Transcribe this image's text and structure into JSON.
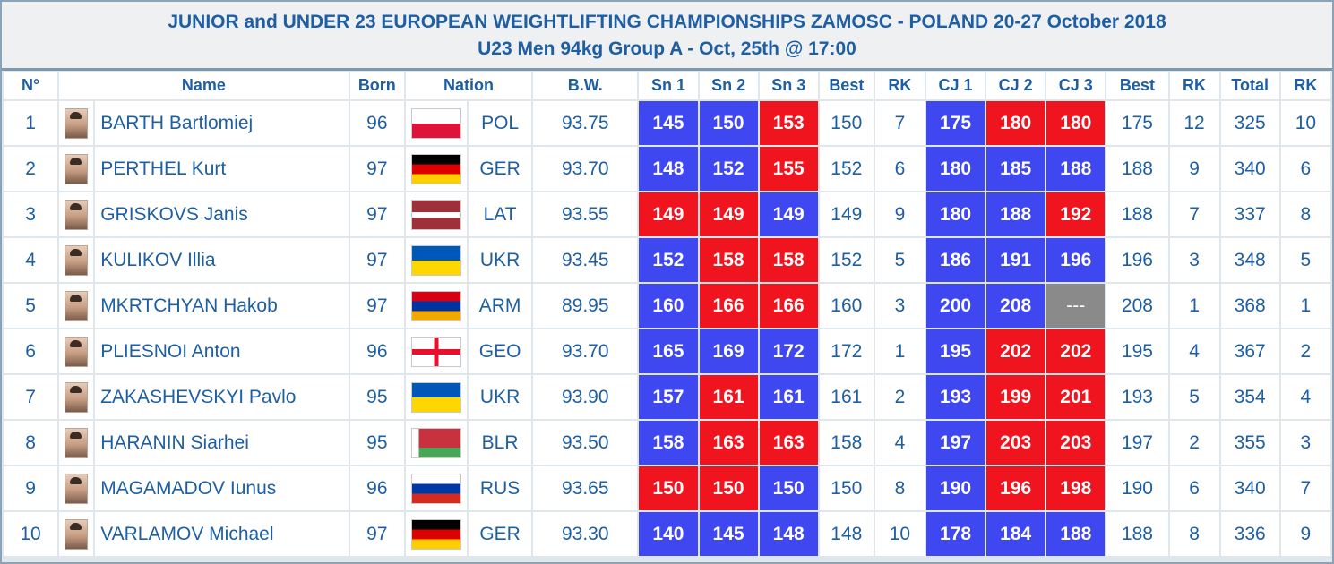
{
  "header": {
    "title": "JUNIOR and UNDER 23 EUROPEAN WEIGHTLIFTING CHAMPIONSHIPS ZAMOSC - POLAND 20-27 October 2018",
    "subtitle": "U23 Men 94kg Group A - Oct, 25th @ 17:00"
  },
  "colors": {
    "good_lift": "#3f47f0",
    "no_lift": "#f0141e",
    "not_attempted": "#8a8a8a",
    "text": "#1e5fa3"
  },
  "columns": [
    "N°",
    "Name",
    "Born",
    "Nation",
    "B.W.",
    "Sn 1",
    "Sn 2",
    "Sn 3",
    "Best",
    "RK",
    "CJ 1",
    "CJ 2",
    "CJ 3",
    "Best",
    "RK",
    "Total",
    "RK"
  ],
  "rows": [
    {
      "no": "1",
      "name": "BARTH Bartlomiej",
      "born": "96",
      "flag": "flag-pol",
      "nation": "POL",
      "bw": "93.75",
      "sn": [
        {
          "v": "145",
          "r": "ok"
        },
        {
          "v": "150",
          "r": "ok"
        },
        {
          "v": "153",
          "r": "fail"
        }
      ],
      "sn_best": "150",
      "sn_rk": "7",
      "cj": [
        {
          "v": "175",
          "r": "ok"
        },
        {
          "v": "180",
          "r": "fail"
        },
        {
          "v": "180",
          "r": "fail"
        }
      ],
      "cj_best": "175",
      "cj_rk": "12",
      "total": "325",
      "total_rk": "10"
    },
    {
      "no": "2",
      "name": "PERTHEL Kurt",
      "born": "97",
      "flag": "flag-ger",
      "nation": "GER",
      "bw": "93.70",
      "sn": [
        {
          "v": "148",
          "r": "ok"
        },
        {
          "v": "152",
          "r": "ok"
        },
        {
          "v": "155",
          "r": "fail"
        }
      ],
      "sn_best": "152",
      "sn_rk": "6",
      "cj": [
        {
          "v": "180",
          "r": "ok"
        },
        {
          "v": "185",
          "r": "ok"
        },
        {
          "v": "188",
          "r": "ok"
        }
      ],
      "cj_best": "188",
      "cj_rk": "9",
      "total": "340",
      "total_rk": "6"
    },
    {
      "no": "3",
      "name": "GRISKOVS Janis",
      "born": "97",
      "flag": "flag-lat",
      "nation": "LAT",
      "bw": "93.55",
      "sn": [
        {
          "v": "149",
          "r": "fail"
        },
        {
          "v": "149",
          "r": "fail"
        },
        {
          "v": "149",
          "r": "ok"
        }
      ],
      "sn_best": "149",
      "sn_rk": "9",
      "cj": [
        {
          "v": "180",
          "r": "ok"
        },
        {
          "v": "188",
          "r": "ok"
        },
        {
          "v": "192",
          "r": "fail"
        }
      ],
      "cj_best": "188",
      "cj_rk": "7",
      "total": "337",
      "total_rk": "8"
    },
    {
      "no": "4",
      "name": "KULIKOV Illia",
      "born": "97",
      "flag": "flag-ukr",
      "nation": "UKR",
      "bw": "93.45",
      "sn": [
        {
          "v": "152",
          "r": "ok"
        },
        {
          "v": "158",
          "r": "fail"
        },
        {
          "v": "158",
          "r": "fail"
        }
      ],
      "sn_best": "152",
      "sn_rk": "5",
      "cj": [
        {
          "v": "186",
          "r": "ok"
        },
        {
          "v": "191",
          "r": "ok"
        },
        {
          "v": "196",
          "r": "ok"
        }
      ],
      "cj_best": "196",
      "cj_rk": "3",
      "total": "348",
      "total_rk": "5"
    },
    {
      "no": "5",
      "name": "MKRTCHYAN Hakob",
      "born": "97",
      "flag": "flag-arm",
      "nation": "ARM",
      "bw": "89.95",
      "sn": [
        {
          "v": "160",
          "r": "ok"
        },
        {
          "v": "166",
          "r": "fail"
        },
        {
          "v": "166",
          "r": "fail"
        }
      ],
      "sn_best": "160",
      "sn_rk": "3",
      "cj": [
        {
          "v": "200",
          "r": "ok"
        },
        {
          "v": "208",
          "r": "ok"
        },
        {
          "v": "---",
          "r": "none"
        }
      ],
      "cj_best": "208",
      "cj_rk": "1",
      "total": "368",
      "total_rk": "1"
    },
    {
      "no": "6",
      "name": "PLIESNOI Anton",
      "born": "96",
      "flag": "flag-geo",
      "nation": "GEO",
      "bw": "93.70",
      "sn": [
        {
          "v": "165",
          "r": "ok"
        },
        {
          "v": "169",
          "r": "ok"
        },
        {
          "v": "172",
          "r": "ok"
        }
      ],
      "sn_best": "172",
      "sn_rk": "1",
      "cj": [
        {
          "v": "195",
          "r": "ok"
        },
        {
          "v": "202",
          "r": "fail"
        },
        {
          "v": "202",
          "r": "fail"
        }
      ],
      "cj_best": "195",
      "cj_rk": "4",
      "total": "367",
      "total_rk": "2"
    },
    {
      "no": "7",
      "name": "ZAKASHEVSKYI Pavlo",
      "born": "95",
      "flag": "flag-ukr",
      "nation": "UKR",
      "bw": "93.90",
      "sn": [
        {
          "v": "157",
          "r": "ok"
        },
        {
          "v": "161",
          "r": "fail"
        },
        {
          "v": "161",
          "r": "ok"
        }
      ],
      "sn_best": "161",
      "sn_rk": "2",
      "cj": [
        {
          "v": "193",
          "r": "ok"
        },
        {
          "v": "199",
          "r": "fail"
        },
        {
          "v": "201",
          "r": "fail"
        }
      ],
      "cj_best": "193",
      "cj_rk": "5",
      "total": "354",
      "total_rk": "4"
    },
    {
      "no": "8",
      "name": "HARANIN Siarhei",
      "born": "95",
      "flag": "flag-blr",
      "nation": "BLR",
      "bw": "93.50",
      "sn": [
        {
          "v": "158",
          "r": "ok"
        },
        {
          "v": "163",
          "r": "fail"
        },
        {
          "v": "163",
          "r": "fail"
        }
      ],
      "sn_best": "158",
      "sn_rk": "4",
      "cj": [
        {
          "v": "197",
          "r": "ok"
        },
        {
          "v": "203",
          "r": "fail"
        },
        {
          "v": "203",
          "r": "fail"
        }
      ],
      "cj_best": "197",
      "cj_rk": "2",
      "total": "355",
      "total_rk": "3"
    },
    {
      "no": "9",
      "name": "MAGAMADOV Iunus",
      "born": "96",
      "flag": "flag-rus",
      "nation": "RUS",
      "bw": "93.65",
      "sn": [
        {
          "v": "150",
          "r": "fail"
        },
        {
          "v": "150",
          "r": "fail"
        },
        {
          "v": "150",
          "r": "ok"
        }
      ],
      "sn_best": "150",
      "sn_rk": "8",
      "cj": [
        {
          "v": "190",
          "r": "ok"
        },
        {
          "v": "196",
          "r": "fail"
        },
        {
          "v": "198",
          "r": "fail"
        }
      ],
      "cj_best": "190",
      "cj_rk": "6",
      "total": "340",
      "total_rk": "7"
    },
    {
      "no": "10",
      "name": "VARLAMOV Michael",
      "born": "97",
      "flag": "flag-ger",
      "nation": "GER",
      "bw": "93.30",
      "sn": [
        {
          "v": "140",
          "r": "ok"
        },
        {
          "v": "145",
          "r": "ok"
        },
        {
          "v": "148",
          "r": "ok"
        }
      ],
      "sn_best": "148",
      "sn_rk": "10",
      "cj": [
        {
          "v": "178",
          "r": "ok"
        },
        {
          "v": "184",
          "r": "ok"
        },
        {
          "v": "188",
          "r": "ok"
        }
      ],
      "cj_best": "188",
      "cj_rk": "8",
      "total": "336",
      "total_rk": "9"
    }
  ]
}
